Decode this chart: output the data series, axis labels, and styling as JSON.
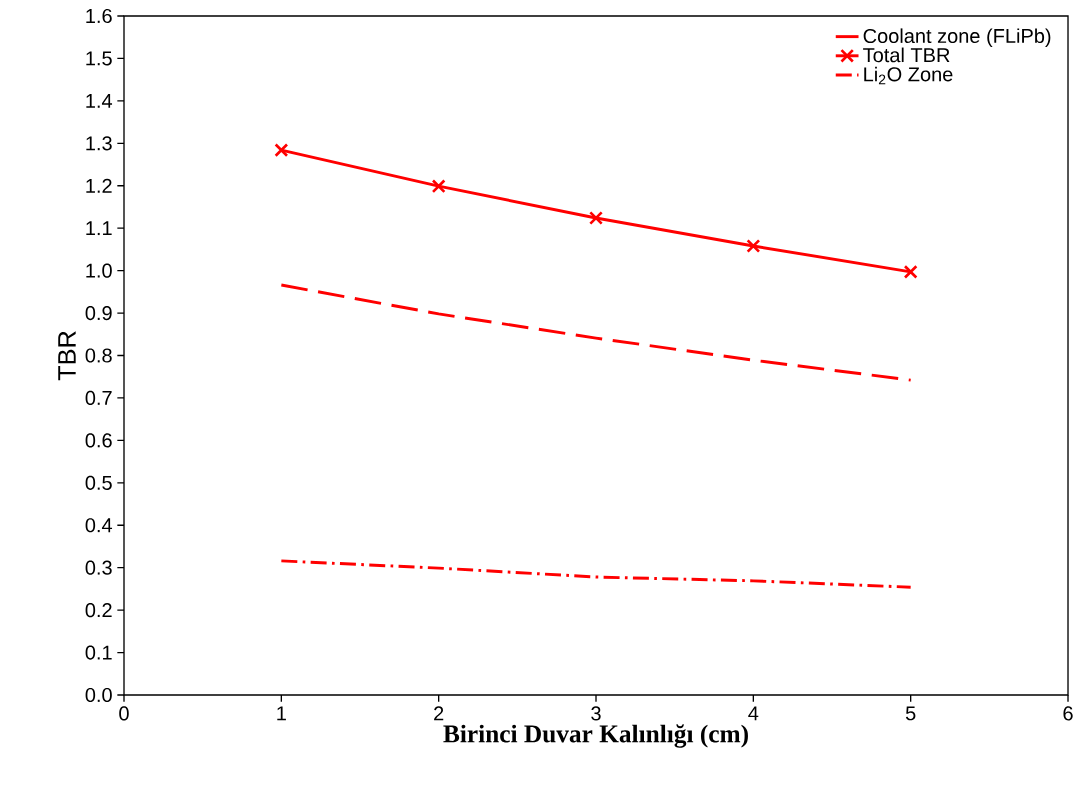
{
  "chart_data": {
    "type": "line",
    "xlabel": "Birinci Duvar Kalınlığı (cm)",
    "ylabel": "TBR",
    "x": [
      1,
      2,
      3,
      4,
      5
    ],
    "series": [
      {
        "name": "Coolant zone (FLiPb)",
        "color": "#ff0000",
        "line_style": "dashed",
        "marker": "none",
        "values": [
          0.966,
          0.898,
          0.841,
          0.789,
          0.742
        ]
      },
      {
        "name": "Total TBR",
        "color": "#ff0000",
        "line_style": "solid",
        "marker": "cross",
        "values": [
          1.284,
          1.199,
          1.124,
          1.058,
          0.997
        ]
      },
      {
        "name": "Li$_{2}$O Zone",
        "color": "#ff0000",
        "line_style": "dashdot",
        "marker": "none",
        "values": [
          0.316,
          0.299,
          0.278,
          0.269,
          0.254
        ]
      }
    ],
    "xlim": [
      0,
      6
    ],
    "ylim": [
      0,
      1.6
    ],
    "xticks": [
      0,
      1,
      2,
      3,
      4,
      5,
      6
    ],
    "yticks": [
      {
        "value": 0,
        "label": "0.0"
      },
      {
        "value": 0.1,
        "label": "0.1"
      },
      {
        "value": 0.2,
        "label": "0.2"
      },
      {
        "value": 0.3,
        "label": "0.3"
      },
      {
        "value": 0.4,
        "label": "0.4"
      },
      {
        "value": 0.5,
        "label": "0.5"
      },
      {
        "value": 0.6,
        "label": "0.6"
      },
      {
        "value": 0.7,
        "label": "0.7"
      },
      {
        "value": 0.8,
        "label": "0.8"
      },
      {
        "value": 0.9,
        "label": "0.9"
      },
      {
        "value": 1.0,
        "label": "1.0"
      },
      {
        "value": 1.1,
        "label": "1.1"
      },
      {
        "value": 1.2,
        "label": "1.2"
      },
      {
        "value": 1.3,
        "label": "1.3"
      },
      {
        "value": 1.4,
        "label": "1.4"
      },
      {
        "value": 1.5,
        "label": "1.5"
      },
      {
        "value": 1.6,
        "label": "1.6"
      }
    ],
    "grid": false,
    "legend": "top right"
  }
}
